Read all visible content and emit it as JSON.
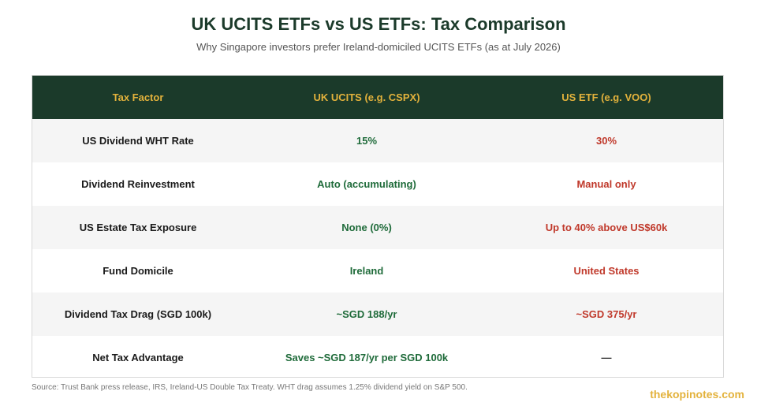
{
  "title": "UK UCITS ETFs vs US ETFs: Tax Comparison",
  "subtitle": "Why Singapore investors prefer Ireland-domiciled UCITS ETFs (as at July 2026)",
  "colors": {
    "header_bg": "#1b3a2a",
    "header_text": "#e3b23c",
    "positive": "#1f6b3a",
    "negative": "#c0392b"
  },
  "table": {
    "headers": [
      "Tax Factor",
      "UK UCITS (e.g. CSPX)",
      "US ETF (e.g. VOO)"
    ],
    "rows": [
      [
        "US Dividend WHT Rate",
        "15%",
        "30%"
      ],
      [
        "Dividend Reinvestment",
        "Auto (accumulating)",
        "Manual only"
      ],
      [
        "US Estate Tax Exposure",
        "None (0%)",
        "Up to 40% above US$60k"
      ],
      [
        "Fund Domicile",
        "Ireland",
        "United States"
      ],
      [
        "Dividend Tax Drag (SGD 100k)",
        "~SGD 188/yr",
        "~SGD 375/yr"
      ],
      [
        "Net Tax Advantage",
        "Saves ~SGD 187/yr per SGD 100k",
        "—"
      ]
    ]
  },
  "source": "Source: Trust Bank press release, IRS, Ireland-US Double Tax Treaty. WHT drag assumes 1.25% dividend yield on S&P 500.",
  "brand": "thekopinotes.com"
}
